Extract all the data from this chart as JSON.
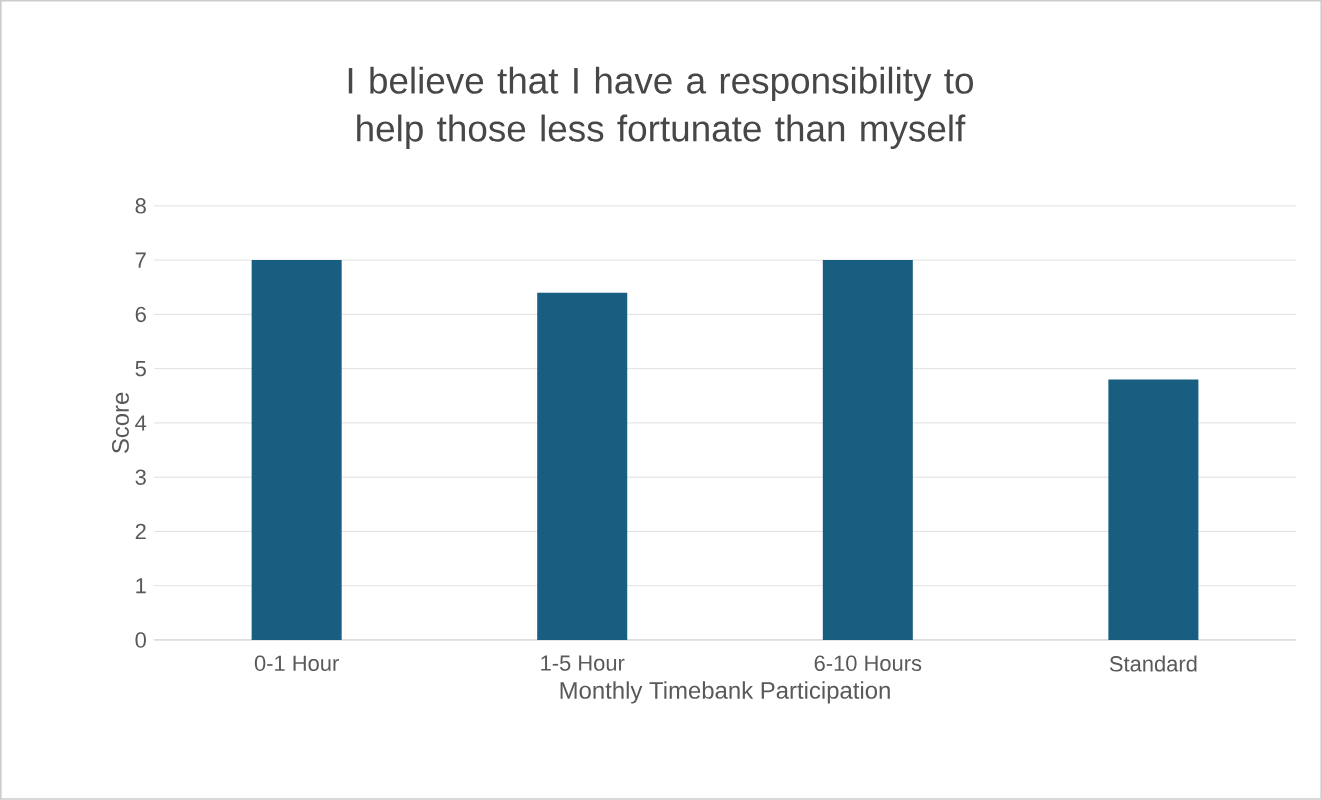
{
  "chart_data": {
    "type": "bar",
    "title": "I believe that I have a responsibility to help those less fortunate than myself",
    "xlabel": "Monthly Timebank Participation",
    "ylabel": "Score",
    "categories": [
      "0-1 Hour",
      "1-5 Hour",
      "6-10 Hours",
      "Standard"
    ],
    "values": [
      7,
      6.4,
      7,
      4.8
    ],
    "color": "#175e80",
    "ylim": [
      0,
      8
    ],
    "yticks": [
      0,
      1,
      2,
      3,
      4,
      5,
      6,
      7,
      8
    ],
    "grid": "y"
  }
}
